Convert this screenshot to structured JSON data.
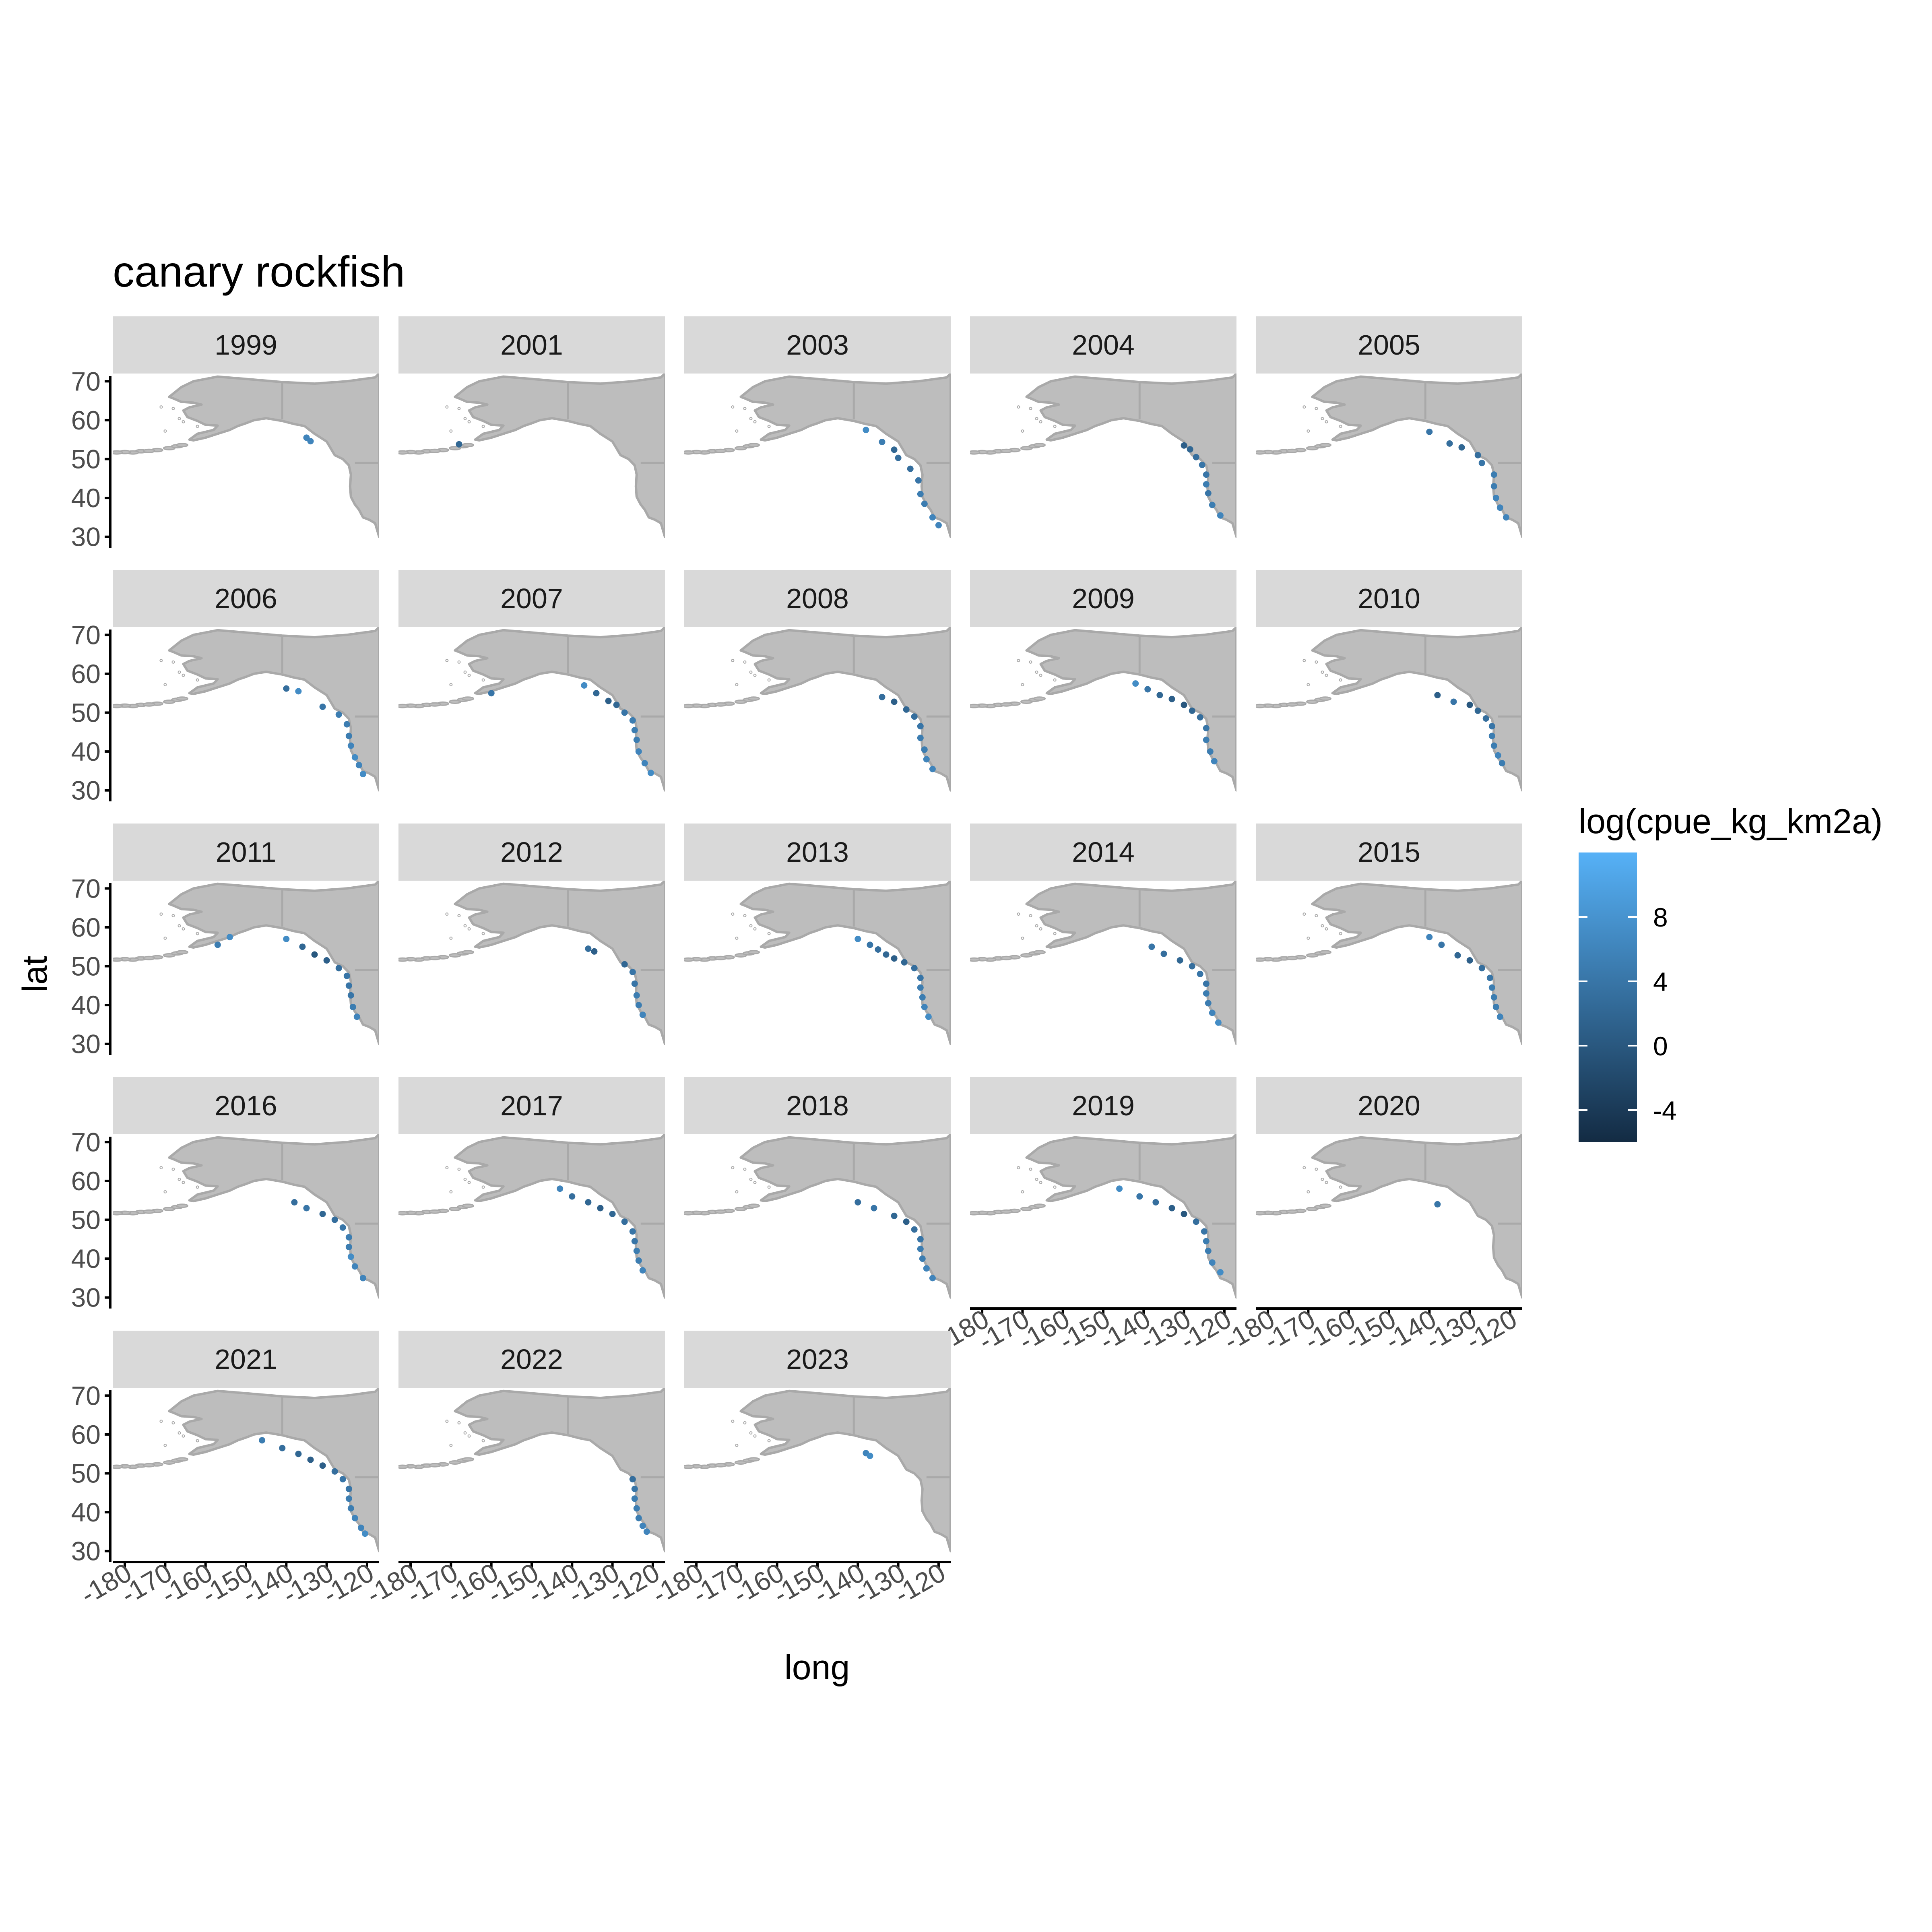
{
  "chart_data": {
    "type": "scatter",
    "title": "canary rockfish",
    "xlabel": "long",
    "ylabel": "lat",
    "xlim": [
      -183,
      -117
    ],
    "ylim": [
      28,
      72
    ],
    "x_ticks": [
      "-180",
      "-170",
      "-160",
      "-150",
      "-140",
      "-130",
      "-120"
    ],
    "y_ticks": [
      "30",
      "40",
      "50",
      "60",
      "70"
    ],
    "facet_variable": "year",
    "panels": [
      {
        "label": "1999",
        "points": [
          [
            -135,
            55.5,
            6
          ],
          [
            -134,
            54.6,
            6
          ]
        ]
      },
      {
        "label": "2001",
        "points": [
          [
            -168,
            53.8,
            2
          ]
        ]
      },
      {
        "label": "2003",
        "points": [
          [
            -138,
            57.5,
            7
          ],
          [
            -134,
            54.4,
            5
          ],
          [
            -131,
            52.4,
            2
          ],
          [
            -130,
            50.3,
            3
          ],
          [
            -127,
            47.5,
            3
          ],
          [
            -125,
            44.5,
            4
          ],
          [
            -124.5,
            41,
            5
          ],
          [
            -123.5,
            38.5,
            5
          ],
          [
            -121.5,
            35,
            6
          ],
          [
            -120,
            33,
            6
          ]
        ]
      },
      {
        "label": "2004",
        "points": [
          [
            -130,
            53.5,
            1
          ],
          [
            -128.5,
            52.5,
            2
          ],
          [
            -127,
            50.5,
            3
          ],
          [
            -125.5,
            48.5,
            4
          ],
          [
            -124.5,
            46,
            4
          ],
          [
            -124.5,
            43.5,
            5
          ],
          [
            -124,
            41.2,
            4
          ],
          [
            -123,
            38.2,
            5
          ],
          [
            -121,
            35.5,
            6
          ]
        ]
      },
      {
        "label": "2005",
        "points": [
          [
            -140,
            57,
            4
          ],
          [
            -135,
            54,
            3
          ],
          [
            -132,
            53,
            2
          ],
          [
            -128,
            51,
            3
          ],
          [
            -127,
            49,
            4
          ],
          [
            -124,
            46,
            5
          ],
          [
            -124,
            43,
            5
          ],
          [
            -123.5,
            40,
            6
          ],
          [
            -122.5,
            37.5,
            6
          ],
          [
            -121,
            35,
            6
          ]
        ]
      },
      {
        "label": "2006",
        "points": [
          [
            -140,
            56.2,
            3
          ],
          [
            -137,
            55.5,
            7
          ],
          [
            -131,
            51.5,
            4
          ],
          [
            -127,
            49.5,
            5
          ],
          [
            -125,
            47,
            5
          ],
          [
            -124.5,
            44,
            5
          ],
          [
            -124,
            41.5,
            6
          ],
          [
            -123,
            38.5,
            7
          ],
          [
            -122,
            36.5,
            6
          ],
          [
            -121,
            34.2,
            7
          ]
        ]
      },
      {
        "label": "2007",
        "points": [
          [
            -160,
            55,
            4
          ],
          [
            -137,
            57,
            7
          ],
          [
            -134,
            55,
            2
          ],
          [
            -131,
            53,
            1
          ],
          [
            -129,
            52,
            2
          ],
          [
            -127,
            50,
            4
          ],
          [
            -125,
            48,
            5
          ],
          [
            -124.5,
            45.5,
            5
          ],
          [
            -124,
            43,
            5
          ],
          [
            -123.5,
            40,
            6
          ],
          [
            -122,
            37,
            6
          ],
          [
            -120.5,
            34.5,
            7
          ]
        ]
      },
      {
        "label": "2008",
        "points": [
          [
            -134,
            54,
            3
          ],
          [
            -131,
            52.8,
            1
          ],
          [
            -128,
            50.8,
            2
          ],
          [
            -126,
            49,
            3
          ],
          [
            -124.5,
            46.5,
            4
          ],
          [
            -124.5,
            43.5,
            5
          ],
          [
            -123.5,
            40.5,
            5
          ],
          [
            -123,
            38,
            6
          ],
          [
            -121.5,
            35.5,
            6
          ]
        ]
      },
      {
        "label": "2009",
        "points": [
          [
            -142,
            57.5,
            7
          ],
          [
            -139,
            56,
            4
          ],
          [
            -136,
            54.5,
            2
          ],
          [
            -133,
            53.5,
            1
          ],
          [
            -130,
            52,
            0
          ],
          [
            -128,
            50.5,
            2
          ],
          [
            -126,
            48.8,
            3
          ],
          [
            -124.5,
            46,
            4
          ],
          [
            -124.5,
            43,
            5
          ],
          [
            -123.5,
            40,
            5
          ],
          [
            -122.5,
            37.5,
            6
          ]
        ]
      },
      {
        "label": "2010",
        "points": [
          [
            -138,
            54.5,
            1
          ],
          [
            -134,
            52.8,
            4
          ],
          [
            -130,
            52,
            0
          ],
          [
            -128,
            50.5,
            2
          ],
          [
            -126,
            48.5,
            3
          ],
          [
            -124.5,
            46.5,
            4
          ],
          [
            -124.5,
            44,
            5
          ],
          [
            -124,
            41.5,
            5
          ],
          [
            -123,
            39,
            6
          ],
          [
            -122,
            37,
            5
          ]
        ]
      },
      {
        "label": "2011",
        "points": [
          [
            -157,
            55.5,
            5
          ],
          [
            -154,
            57.5,
            7
          ],
          [
            -140,
            57,
            7
          ],
          [
            -136,
            55,
            2
          ],
          [
            -133,
            53,
            0
          ],
          [
            -130,
            51.5,
            1
          ],
          [
            -127,
            49.5,
            3
          ],
          [
            -125,
            47.5,
            4
          ],
          [
            -124.5,
            45,
            4
          ],
          [
            -124,
            42.5,
            4
          ],
          [
            -123.5,
            39.5,
            5
          ],
          [
            -122.5,
            37,
            6
          ]
        ]
      },
      {
        "label": "2012",
        "points": [
          [
            -136,
            54.5,
            3
          ],
          [
            -134.5,
            53.8,
            1
          ],
          [
            -127,
            50.5,
            2
          ],
          [
            -125,
            48.5,
            4
          ],
          [
            -124.5,
            45.5,
            4
          ],
          [
            -124,
            42.5,
            5
          ],
          [
            -123.5,
            40,
            5
          ],
          [
            -122.5,
            37.5,
            6
          ]
        ]
      },
      {
        "label": "2013",
        "points": [
          [
            -140,
            57,
            7
          ],
          [
            -137,
            55.5,
            4
          ],
          [
            -135,
            54.3,
            3
          ],
          [
            -133,
            53,
            2
          ],
          [
            -131,
            52,
            1
          ],
          [
            -128.5,
            51,
            2
          ],
          [
            -126,
            49.5,
            3
          ],
          [
            -124.5,
            47,
            4
          ],
          [
            -124.5,
            44.5,
            5
          ],
          [
            -124,
            42,
            5
          ],
          [
            -123.5,
            39.5,
            6
          ],
          [
            -122.5,
            37,
            7
          ]
        ]
      },
      {
        "label": "2014",
        "points": [
          [
            -138,
            55,
            4
          ],
          [
            -135,
            53.2,
            3
          ],
          [
            -131,
            51.5,
            2
          ],
          [
            -128,
            50,
            3
          ],
          [
            -126,
            48,
            4
          ],
          [
            -124.5,
            45.5,
            4
          ],
          [
            -124.5,
            43,
            5
          ],
          [
            -124,
            40.5,
            5
          ],
          [
            -123,
            38,
            6
          ],
          [
            -121.5,
            35.5,
            7
          ]
        ]
      },
      {
        "label": "2015",
        "points": [
          [
            -140,
            57.5,
            6
          ],
          [
            -137,
            55.5,
            4
          ],
          [
            -133,
            52.8,
            2
          ],
          [
            -130,
            51.5,
            1
          ],
          [
            -127,
            49.5,
            3
          ],
          [
            -125,
            47,
            4
          ],
          [
            -124.5,
            44.5,
            5
          ],
          [
            -124,
            42,
            5
          ],
          [
            -123.5,
            39.5,
            5
          ],
          [
            -122.5,
            37,
            6
          ]
        ]
      },
      {
        "label": "2016",
        "points": [
          [
            -138,
            54.5,
            3
          ],
          [
            -135,
            53,
            4
          ],
          [
            -131,
            51.5,
            2
          ],
          [
            -128,
            50,
            3
          ],
          [
            -126,
            48,
            4
          ],
          [
            -124.5,
            45.5,
            5
          ],
          [
            -124.5,
            43,
            5
          ],
          [
            -124,
            40.5,
            7
          ],
          [
            -123,
            38,
            6
          ],
          [
            -121,
            35,
            6
          ]
        ]
      },
      {
        "label": "2017",
        "points": [
          [
            -143,
            58,
            6
          ],
          [
            -140,
            56,
            3
          ],
          [
            -136,
            54.5,
            2
          ],
          [
            -133,
            53,
            1
          ],
          [
            -130,
            51.5,
            2
          ],
          [
            -127,
            49.5,
            3
          ],
          [
            -125,
            47,
            4
          ],
          [
            -124.5,
            44.5,
            4
          ],
          [
            -124,
            42,
            5
          ],
          [
            -123.5,
            39.5,
            5
          ],
          [
            -122.5,
            37,
            6
          ]
        ]
      },
      {
        "label": "2018",
        "points": [
          [
            -140,
            54.5,
            3
          ],
          [
            -136,
            53,
            4
          ],
          [
            -131,
            51,
            2
          ],
          [
            -128,
            49.5,
            1
          ],
          [
            -126,
            47.5,
            3
          ],
          [
            -124.5,
            45,
            4
          ],
          [
            -124.5,
            42.5,
            5
          ],
          [
            -124,
            40,
            5
          ],
          [
            -123,
            37.5,
            6
          ],
          [
            -121.5,
            35,
            6
          ]
        ]
      },
      {
        "label": "2019",
        "points": [
          [
            -146,
            58,
            7
          ],
          [
            -141,
            56,
            4
          ],
          [
            -137,
            54.5,
            3
          ],
          [
            -133,
            53,
            1
          ],
          [
            -130,
            51.5,
            0
          ],
          [
            -127,
            49.5,
            3
          ],
          [
            -125,
            47,
            4
          ],
          [
            -124.5,
            44.5,
            5
          ],
          [
            -124,
            42,
            5
          ],
          [
            -123,
            39,
            6
          ],
          [
            -121,
            36.5,
            7
          ]
        ]
      },
      {
        "label": "2020",
        "points": [
          [
            -138,
            54,
            4
          ]
        ]
      },
      {
        "label": "2021",
        "points": [
          [
            -146,
            58.5,
            5
          ],
          [
            -141,
            56.5,
            3
          ],
          [
            -137,
            55,
            2
          ],
          [
            -134,
            53.5,
            1
          ],
          [
            -131,
            52,
            1
          ],
          [
            -128,
            50.5,
            3
          ],
          [
            -126,
            48.5,
            4
          ],
          [
            -124.5,
            46,
            4
          ],
          [
            -124.5,
            43.5,
            5
          ],
          [
            -124,
            41,
            5
          ],
          [
            -123,
            38.5,
            6
          ],
          [
            -121.5,
            36,
            6
          ],
          [
            -120.5,
            34.5,
            7
          ]
        ]
      },
      {
        "label": "2022",
        "points": [
          [
            -125,
            48.5,
            3
          ],
          [
            -124.5,
            46,
            4
          ],
          [
            -124.5,
            43.5,
            5
          ],
          [
            -124,
            41,
            5
          ],
          [
            -123.5,
            38.5,
            5
          ],
          [
            -122.5,
            36.5,
            6
          ],
          [
            -121.5,
            35,
            6
          ]
        ]
      },
      {
        "label": "2023",
        "points": [
          [
            -138,
            55.2,
            6
          ],
          [
            -137,
            54.5,
            7
          ]
        ]
      }
    ],
    "legend": {
      "title": "log(cpue_kg_km2a)",
      "position": "right",
      "ticks": [
        "8",
        "4",
        "0",
        "-4"
      ],
      "range": [
        -6,
        12
      ],
      "low_color": "#132b43",
      "high_color": "#56b1f7"
    },
    "colors": {
      "land_fill": "#bdbdbd",
      "land_border": "#a9a9a9",
      "strip_fill": "#d9d9d9"
    }
  }
}
